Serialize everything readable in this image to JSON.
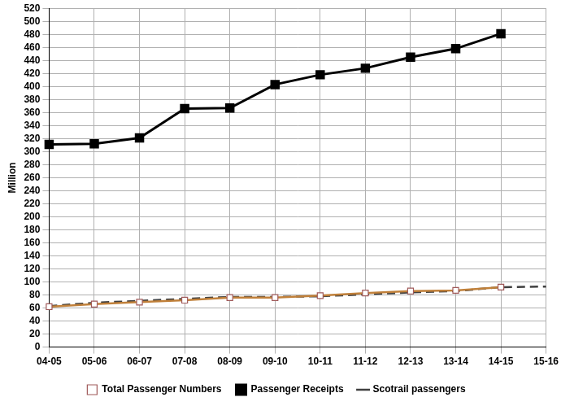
{
  "chart_data": {
    "type": "line",
    "y_label": "Million",
    "categories": [
      "04-05",
      "05-06",
      "06-07",
      "07-08",
      "08-09",
      "09-10",
      "10-11",
      "11-12",
      "12-13",
      "13-14",
      "14-15",
      "15-16"
    ],
    "series": [
      {
        "name": "Total Passenger Numbers",
        "color": "#c0803a",
        "marker": "square_open",
        "line_style": "solid",
        "values": [
          62,
          66,
          69,
          72,
          76,
          76,
          79,
          83,
          86,
          87,
          92,
          null
        ]
      },
      {
        "name": "Passenger Receipts",
        "color": "#000000",
        "marker": "square",
        "line_style": "solid",
        "values": [
          311,
          312,
          321,
          366,
          367,
          403,
          418,
          428,
          445,
          458,
          481,
          null
        ]
      },
      {
        "name": "Scotrail passengers",
        "color": "#404040",
        "marker": "none",
        "line_style": "dashed",
        "values": [
          63,
          68,
          71,
          74,
          77,
          77,
          78,
          81,
          84,
          86,
          92,
          93
        ]
      }
    ],
    "ylim": [
      0,
      520
    ],
    "yticks": [
      0,
      20,
      40,
      60,
      80,
      100,
      120,
      140,
      160,
      180,
      200,
      220,
      240,
      260,
      280,
      300,
      320,
      340,
      360,
      380,
      400,
      420,
      440,
      460,
      480,
      500,
      520
    ],
    "grid": true,
    "legend": "bottom"
  }
}
